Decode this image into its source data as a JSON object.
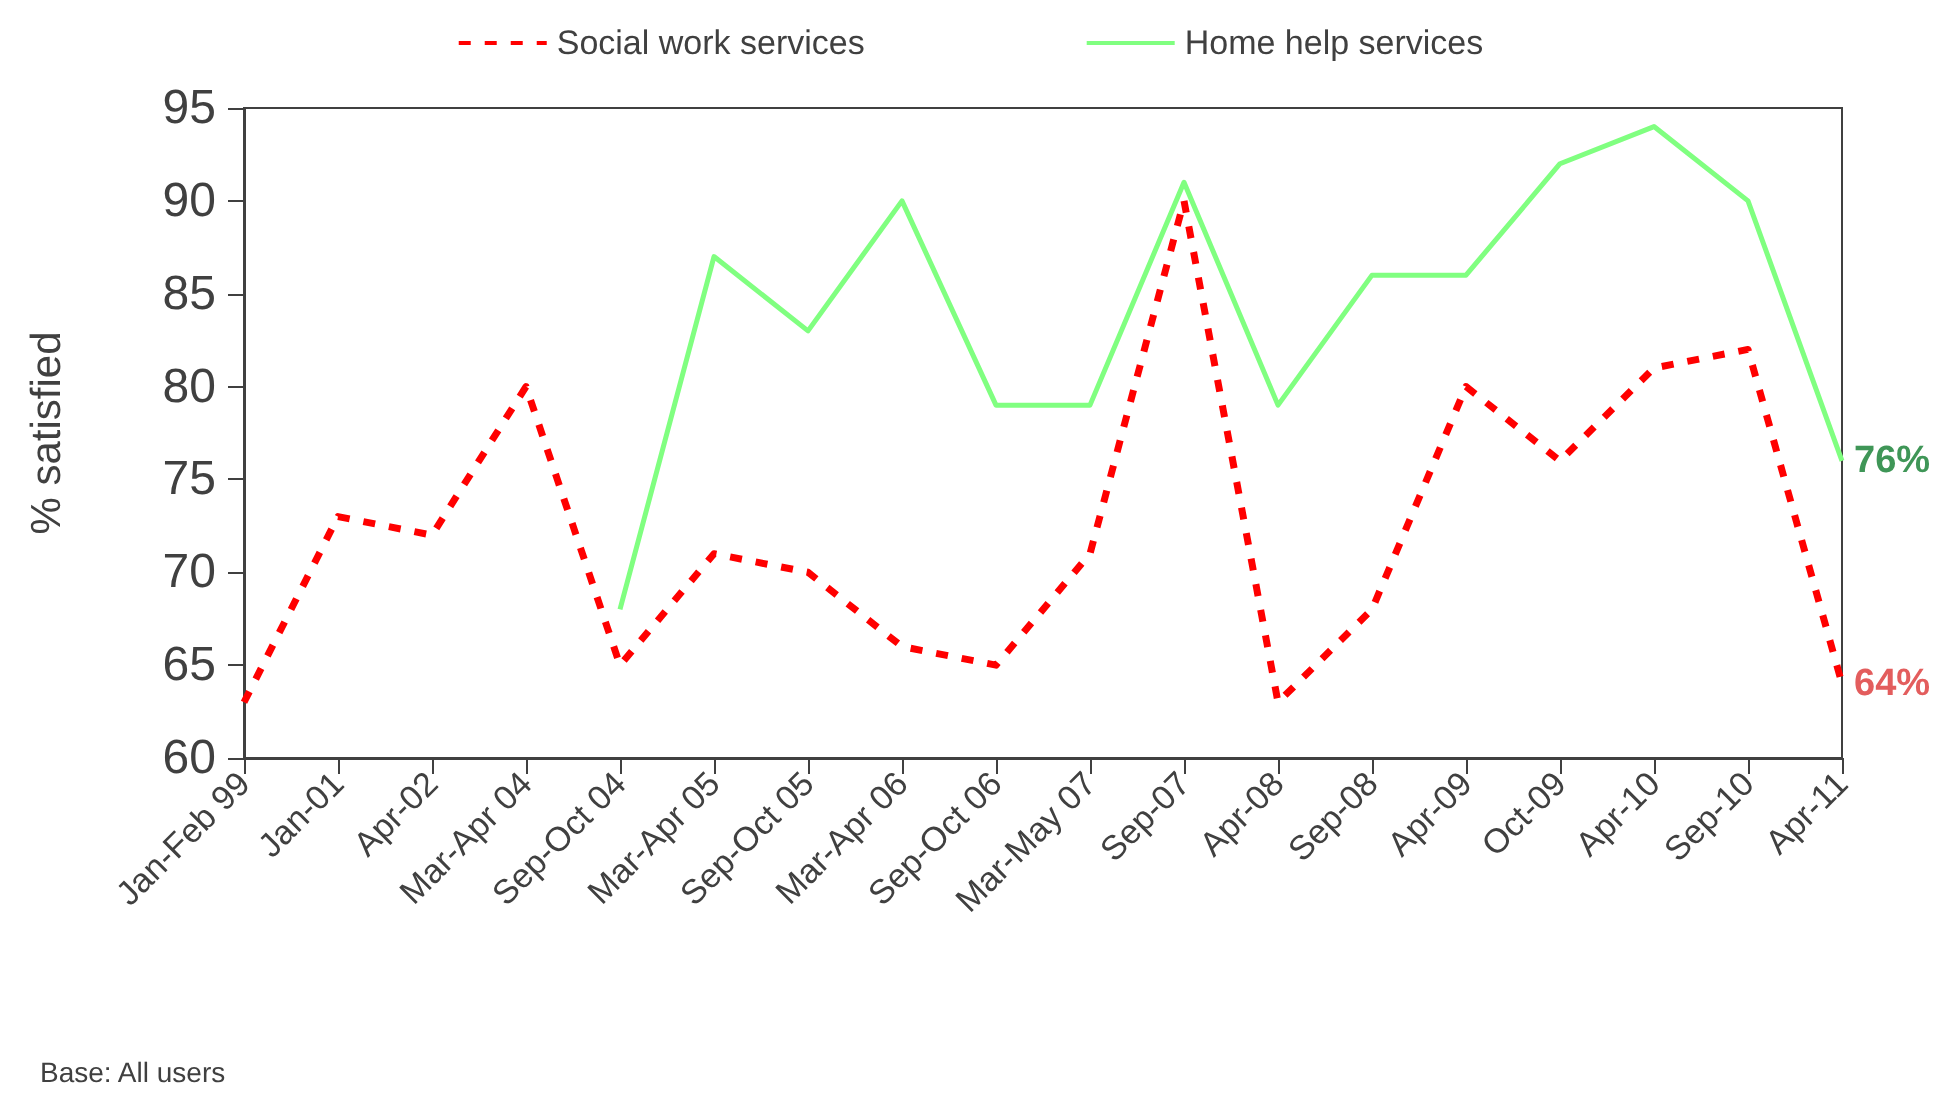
{
  "chart_data": {
    "type": "line",
    "ylabel": "% satisfied",
    "categories": [
      "Jan-Feb 99",
      "Jan-01",
      "Apr-02",
      "Mar-Apr 04",
      "Sep-Oct 04",
      "Mar-Apr 05",
      "Sep-Oct 05",
      "Mar-Apr 06",
      "Sep-Oct 06",
      "Mar-May 07",
      "Sep-07",
      "Apr-08",
      "Sep-08",
      "Apr-09",
      "Oct-09",
      "Apr-10",
      "Sep-10",
      "Apr-11"
    ],
    "series": [
      {
        "name": "Social work services",
        "color": "#ff0000",
        "line_style": "dashed",
        "values": [
          63,
          73,
          72,
          80,
          65,
          71,
          70,
          66,
          65,
          71,
          90,
          63,
          68,
          80,
          76,
          81,
          82,
          64
        ],
        "value_labels": [
          null,
          null,
          null,
          null,
          null,
          null,
          null,
          null,
          null,
          null,
          null,
          null,
          null,
          null,
          null,
          null,
          null,
          "64%"
        ]
      },
      {
        "name": "Home help services",
        "color": "#80ff80",
        "line_style": "solid",
        "values": [
          null,
          null,
          null,
          null,
          68,
          87,
          83,
          90,
          79,
          79,
          91,
          79,
          86,
          86,
          92,
          94,
          90,
          76
        ],
        "value_labels": [
          null,
          null,
          null,
          null,
          null,
          null,
          null,
          null,
          null,
          null,
          null,
          null,
          null,
          null,
          null,
          null,
          null,
          "76%"
        ]
      }
    ],
    "ylim": [
      60,
      95
    ],
    "yticks": [
      60,
      65,
      70,
      75,
      80,
      85,
      90,
      95
    ],
    "grid": false,
    "legend": "top",
    "marker": "none",
    "annotations": [
      "Base: All users"
    ]
  }
}
